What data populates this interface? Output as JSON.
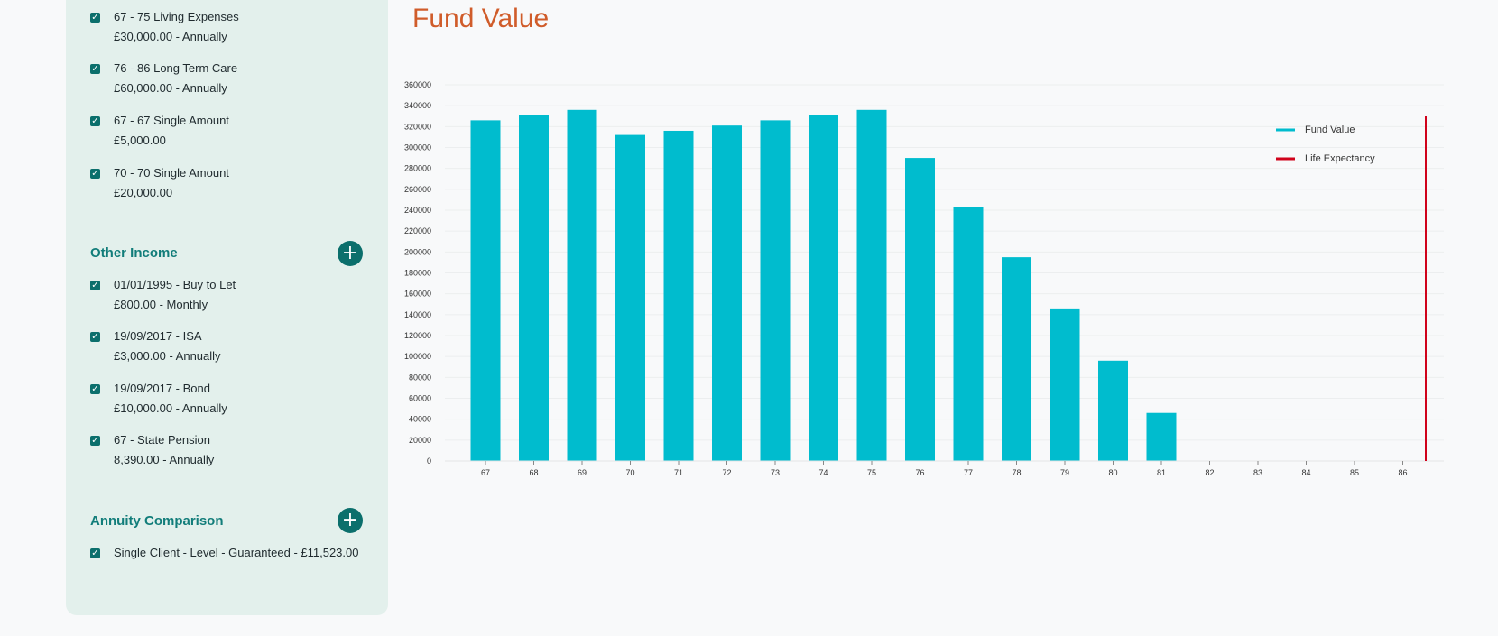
{
  "sidebar": {
    "expenses": [
      {
        "line1": "67 - 75 Living Expenses",
        "line2": "£30,000.00 - Annually",
        "checked": true
      },
      {
        "line1": "76 - 86 Long Term Care",
        "line2": "£60,000.00 - Annually",
        "checked": true
      },
      {
        "line1": "67 - 67 Single Amount",
        "line2": "£5,000.00",
        "checked": true
      },
      {
        "line1": "70 - 70 Single Amount",
        "line2": "£20,000.00",
        "checked": true
      }
    ],
    "other_income": {
      "title": "Other Income",
      "add_icon": "plus-icon",
      "items": [
        {
          "line1": "01/01/1995 - Buy to Let",
          "line2": "£800.00 - Monthly",
          "checked": true
        },
        {
          "line1": "19/09/2017 - ISA",
          "line2": "£3,000.00 - Annually",
          "checked": true
        },
        {
          "line1": "19/09/2017 - Bond",
          "line2": "£10,000.00 - Annually",
          "checked": true
        },
        {
          "line1": "67 - State Pension",
          "line2": "8,390.00 - Annually",
          "checked": true
        }
      ]
    },
    "annuity_comparison": {
      "title": "Annuity Comparison",
      "add_icon": "plus-icon",
      "items": [
        {
          "line1": "Single Client - Level - Guaranteed - £11,523.00",
          "checked": true
        }
      ]
    }
  },
  "main": {
    "title": "Fund Value"
  },
  "colors": {
    "accent": "#0b6f6c",
    "title": "#d05c2a",
    "bar": "#00bcce",
    "life_expectancy": "#d0021b",
    "sidebar_bg": "#e3f0ec"
  },
  "chart_data": {
    "type": "bar",
    "categories": [
      "67",
      "68",
      "69",
      "70",
      "71",
      "72",
      "73",
      "74",
      "75",
      "76",
      "77",
      "78",
      "79",
      "80",
      "81",
      "82",
      "83",
      "84",
      "85",
      "86"
    ],
    "series": [
      {
        "name": "Fund Value",
        "values": [
          326000,
          331000,
          336000,
          312000,
          316000,
          321000,
          326000,
          331000,
          336000,
          290000,
          243000,
          195000,
          146000,
          96000,
          46000,
          0,
          0,
          0,
          0,
          0
        ]
      }
    ],
    "life_expectancy": {
      "name": "Life Expectancy",
      "x": "86"
    },
    "ylim": [
      0,
      360000
    ],
    "yticks": [
      0,
      20000,
      40000,
      60000,
      80000,
      100000,
      120000,
      140000,
      160000,
      180000,
      200000,
      220000,
      240000,
      260000,
      280000,
      300000,
      320000,
      340000,
      360000
    ],
    "grid": true,
    "legend": "top-right"
  }
}
